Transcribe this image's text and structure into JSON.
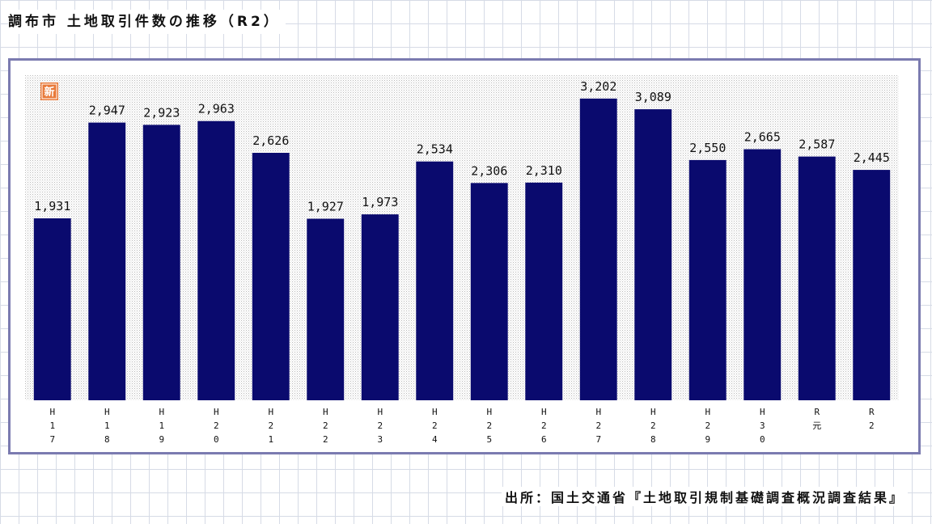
{
  "title": "調布市 土地取引件数の推移（R2）",
  "source": "出所：国土交通省『土地取引規制基礎調査概況調査結果』",
  "badge_text": "新",
  "colors": {
    "bar": "#0a0a6e",
    "frame": "#7b7bb0",
    "badge": "#e87a3a",
    "plot_dots": "#c8c8c8"
  },
  "chart_data": {
    "type": "bar",
    "categories": [
      "H17",
      "H18",
      "H19",
      "H20",
      "H21",
      "H22",
      "H23",
      "H24",
      "H25",
      "H26",
      "H27",
      "H28",
      "H29",
      "H30",
      "R元",
      "R2"
    ],
    "tick_labels": [
      [
        "H",
        "1",
        "7"
      ],
      [
        "H",
        "1",
        "8"
      ],
      [
        "H",
        "1",
        "9"
      ],
      [
        "H",
        "2",
        "0"
      ],
      [
        "H",
        "2",
        "1"
      ],
      [
        "H",
        "2",
        "2"
      ],
      [
        "H",
        "2",
        "3"
      ],
      [
        "H",
        "2",
        "4"
      ],
      [
        "H",
        "2",
        "5"
      ],
      [
        "H",
        "2",
        "6"
      ],
      [
        "H",
        "2",
        "7"
      ],
      [
        "H",
        "2",
        "8"
      ],
      [
        "H",
        "2",
        "9"
      ],
      [
        "H",
        "3",
        "0"
      ],
      [
        "R",
        "元"
      ],
      [
        "R",
        "2"
      ]
    ],
    "values": [
      1931,
      2947,
      2923,
      2963,
      2626,
      1927,
      1973,
      2534,
      2306,
      2310,
      3202,
      3089,
      2550,
      2665,
      2587,
      2445
    ],
    "value_labels": [
      "1,931",
      "2,947",
      "2,923",
      "2,963",
      "2,626",
      "1,927",
      "1,973",
      "2,534",
      "2,306",
      "2,310",
      "3,202",
      "3,089",
      "2,550",
      "2,665",
      "2,587",
      "2,445"
    ],
    "ylim": [
      0,
      3450
    ],
    "grid": false
  }
}
